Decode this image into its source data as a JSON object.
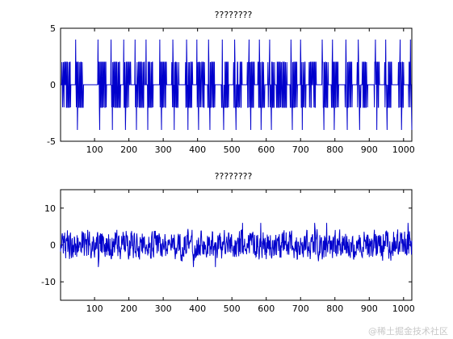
{
  "chart_data": [
    {
      "type": "line",
      "title": "????????",
      "xlim": [
        1,
        1024
      ],
      "ylim": [
        -5,
        5
      ],
      "xticks": [
        100,
        200,
        300,
        400,
        500,
        600,
        700,
        800,
        900,
        1000
      ],
      "yticks": [
        -5,
        0,
        5
      ],
      "grid": false,
      "line_color": "#0000cc",
      "series": [
        {
          "pattern": "bursts of ±2 square-wave oscillation with ±4 spikes, separated by flat zero segments",
          "bursts": [
            [
              5,
              30
            ],
            [
              45,
              68
            ],
            [
              112,
              135
            ],
            [
              150,
              175
            ],
            [
              185,
              205
            ],
            [
              218,
              245
            ],
            [
              255,
              270
            ],
            [
              290,
              310
            ],
            [
              325,
              345
            ],
            [
              365,
              385
            ],
            [
              397,
              420
            ],
            [
              430,
              450
            ],
            [
              470,
              490
            ],
            [
              505,
              530
            ],
            [
              545,
              565
            ],
            [
              575,
              595
            ],
            [
              605,
              625
            ],
            [
              630,
              660
            ],
            [
              670,
              690
            ],
            [
              700,
              715
            ],
            [
              725,
              745
            ],
            [
              760,
              780
            ],
            [
              790,
              810
            ],
            [
              830,
              850
            ],
            [
              865,
              875
            ],
            [
              880,
              895
            ],
            [
              915,
              930
            ],
            [
              945,
              965
            ],
            [
              985,
              1000
            ],
            [
              1015,
              1024
            ]
          ],
          "spike_positions": [
            [
              45,
              4
            ],
            [
              50,
              -4
            ],
            [
              110,
              4
            ],
            [
              115,
              -4
            ],
            [
              148,
              4
            ],
            [
              152,
              -4
            ],
            [
              185,
              4
            ],
            [
              190,
              -4
            ],
            [
              218,
              4
            ],
            [
              222,
              -4
            ],
            [
              250,
              4
            ],
            [
              255,
              -4
            ],
            [
              290,
              4
            ],
            [
              295,
              -4
            ],
            [
              328,
              4
            ],
            [
              332,
              -4
            ],
            [
              368,
              4
            ],
            [
              372,
              -4
            ],
            [
              398,
              4
            ],
            [
              403,
              -4
            ],
            [
              432,
              4
            ],
            [
              436,
              -4
            ],
            [
              472,
              4
            ],
            [
              476,
              -4
            ],
            [
              508,
              4
            ],
            [
              512,
              -4
            ],
            [
              550,
              4
            ],
            [
              555,
              -4
            ],
            [
              580,
              4
            ],
            [
              585,
              -4
            ],
            [
              610,
              4
            ],
            [
              615,
              -4
            ],
            [
              672,
              4
            ],
            [
              676,
              -4
            ],
            [
              700,
              4
            ],
            [
              705,
              -4
            ],
            [
              763,
              4
            ],
            [
              768,
              -4
            ],
            [
              793,
              4
            ],
            [
              798,
              -4
            ],
            [
              832,
              4
            ],
            [
              836,
              -4
            ],
            [
              868,
              4
            ],
            [
              872,
              -4
            ],
            [
              918,
              4
            ],
            [
              922,
              -4
            ],
            [
              948,
              4
            ],
            [
              952,
              -4
            ],
            [
              990,
              4
            ],
            [
              994,
              -4
            ],
            [
              1020,
              4
            ],
            [
              1024,
              -4
            ]
          ]
        }
      ]
    },
    {
      "type": "line",
      "title": "????????",
      "xlim": [
        1,
        1024
      ],
      "ylim": [
        -15,
        15
      ],
      "xticks": [
        100,
        200,
        300,
        400,
        500,
        600,
        700,
        800,
        900,
        1000
      ],
      "yticks": [
        -10,
        0,
        10
      ],
      "grid": false,
      "line_color": "#0000cc",
      "series": [
        {
          "pattern": "noise around 0, amplitude roughly ±4, occasional peaks near ±6",
          "amplitude": 4
        }
      ]
    }
  ],
  "watermark": "@稀土掘金技术社区"
}
